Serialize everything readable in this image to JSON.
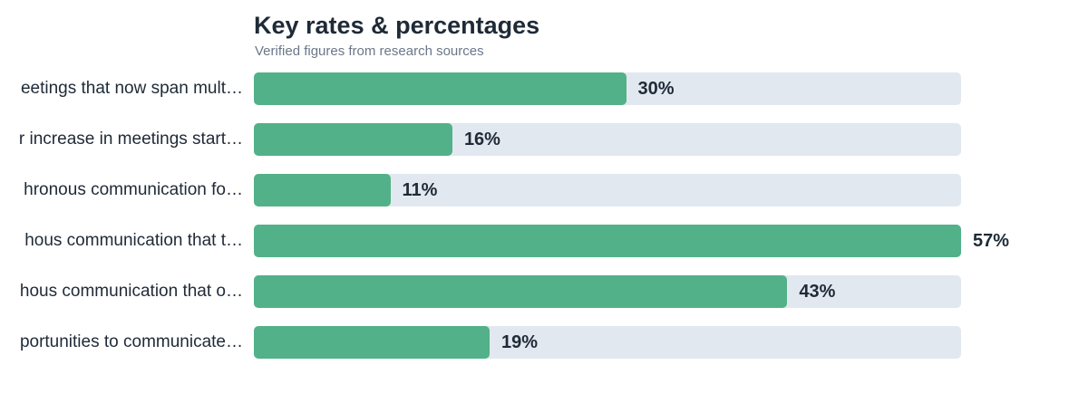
{
  "colors": {
    "bar": "#52b188",
    "track": "#e2e8f0",
    "text": "#1f2a37",
    "subtitle": "#6b7789"
  },
  "chart_data": {
    "type": "bar",
    "orientation": "horizontal",
    "title": "Key rates & percentages",
    "subtitle": "Verified figures from research sources",
    "categories": [
      "eetings that now span mult…",
      "r increase in meetings start…",
      "hronous communication fo…",
      "hous communication that t…",
      "hous communication that o…",
      "portunities to communicate…"
    ],
    "values": [
      30,
      16,
      11,
      57,
      43,
      19
    ],
    "value_labels": [
      "30%",
      "16%",
      "11%",
      "57%",
      "43%",
      "19%"
    ],
    "xlim": [
      0,
      57
    ],
    "grid": false,
    "legend": "none"
  }
}
